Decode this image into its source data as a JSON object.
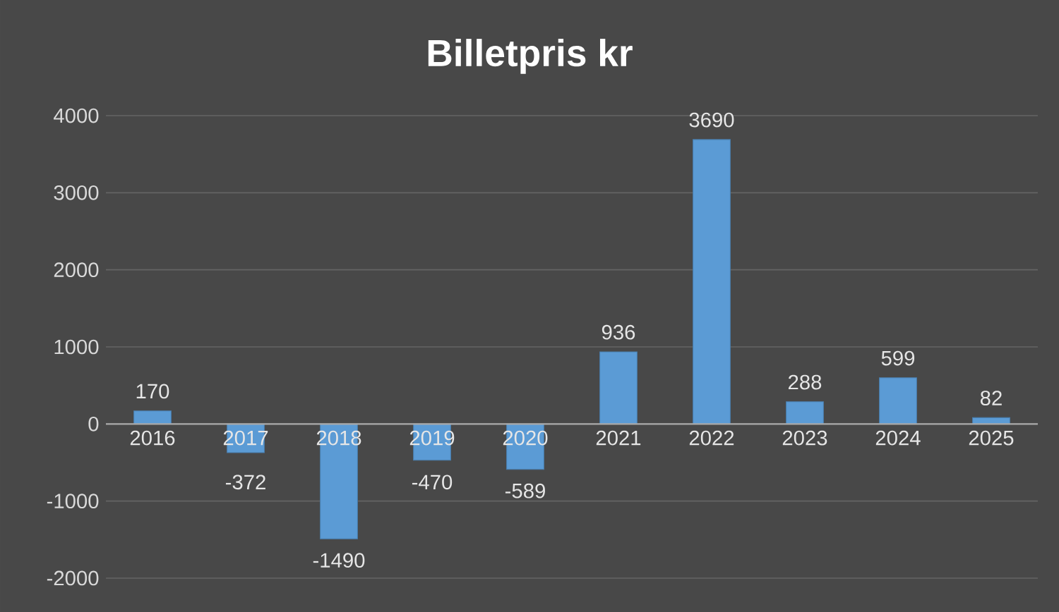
{
  "chart_data": {
    "type": "bar",
    "title": "Billetpris kr",
    "categories": [
      "2016",
      "2017",
      "2018",
      "2019",
      "2020",
      "2021",
      "2022",
      "2023",
      "2024",
      "2025"
    ],
    "values": [
      170,
      -372,
      -1490,
      -470,
      -589,
      936,
      3690,
      288,
      599,
      82
    ],
    "color": "#5b9bd5",
    "ylim": [
      -2000,
      4000
    ],
    "yticks": [
      -2000,
      -1000,
      0,
      1000,
      2000,
      3000,
      4000
    ],
    "grid": "y",
    "data_labels": true
  }
}
